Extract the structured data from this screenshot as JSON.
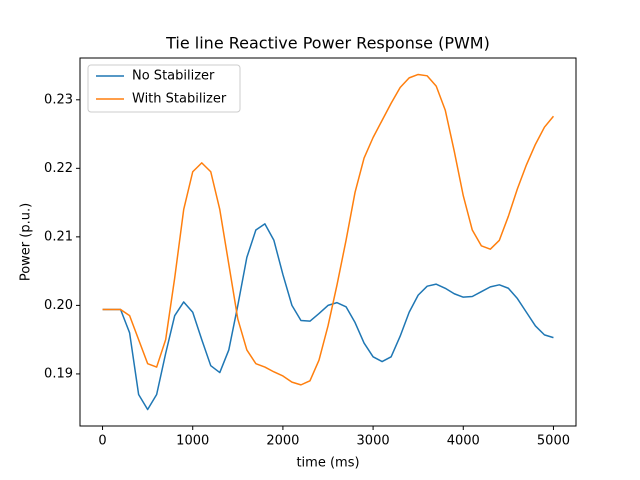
{
  "chart_data": {
    "type": "line",
    "title": "Tie line Reactive Power Response (PWM)",
    "x_label": "time (ms)",
    "y_label": "Power (p.u.)",
    "x": [
      0,
      100,
      200,
      300,
      400,
      500,
      600,
      700,
      800,
      900,
      1000,
      1100,
      1200,
      1300,
      1400,
      1500,
      1600,
      1700,
      1800,
      1900,
      2000,
      2100,
      2200,
      2300,
      2400,
      2500,
      2600,
      2700,
      2800,
      2900,
      3000,
      3100,
      3200,
      3300,
      3400,
      3500,
      3600,
      3700,
      3800,
      3900,
      4000,
      4100,
      4200,
      4300,
      4400,
      4500,
      4600,
      4700,
      4800,
      4900,
      5000
    ],
    "series": [
      {
        "name": "No Stabilizer",
        "color": "#1f77b4",
        "values": [
          0.1994,
          0.1994,
          0.1994,
          0.196,
          0.187,
          0.1848,
          0.187,
          0.193,
          0.1985,
          0.2005,
          0.199,
          0.195,
          0.1912,
          0.1902,
          0.1935,
          0.2,
          0.207,
          0.211,
          0.2119,
          0.2095,
          0.2045,
          0.2,
          0.1978,
          0.1977,
          0.1988,
          0.2,
          0.2004,
          0.1998,
          0.1975,
          0.1945,
          0.1925,
          0.1918,
          0.1925,
          0.1955,
          0.199,
          0.2015,
          0.2028,
          0.2031,
          0.2025,
          0.2017,
          0.2012,
          0.2013,
          0.202,
          0.2027,
          0.203,
          0.2025,
          0.201,
          0.199,
          0.197,
          0.1957,
          0.1953
        ]
      },
      {
        "name": "With Stabilizer",
        "color": "#ff7f0e",
        "values": [
          0.1994,
          0.1994,
          0.1994,
          0.1985,
          0.195,
          0.1915,
          0.191,
          0.195,
          0.204,
          0.214,
          0.2195,
          0.2208,
          0.2195,
          0.214,
          0.206,
          0.198,
          0.1935,
          0.1915,
          0.191,
          0.1903,
          0.1897,
          0.1888,
          0.1884,
          0.189,
          0.192,
          0.197,
          0.203,
          0.2095,
          0.2165,
          0.2215,
          0.2245,
          0.227,
          0.2295,
          0.2318,
          0.2332,
          0.2337,
          0.2335,
          0.232,
          0.2285,
          0.2225,
          0.216,
          0.211,
          0.2087,
          0.2082,
          0.2095,
          0.213,
          0.217,
          0.2205,
          0.2235,
          0.226,
          0.2276
        ]
      }
    ],
    "xlim": [
      -250,
      5250
    ],
    "xticks": [
      0,
      1000,
      2000,
      3000,
      4000,
      5000
    ],
    "ylim": [
      0.1824,
      0.2361
    ],
    "yticks": [
      0.19,
      {
        "value": 0.2,
        "label": "0.20"
      },
      0.21,
      0.22,
      0.23
    ],
    "grid": false,
    "legend": "upper left"
  }
}
